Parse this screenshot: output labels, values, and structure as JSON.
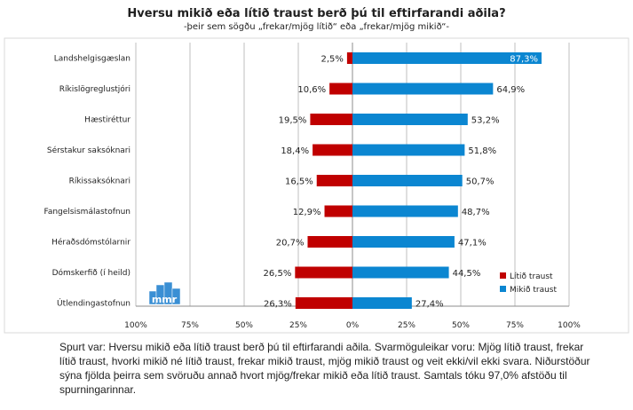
{
  "chart_data": {
    "type": "bar",
    "title": "Hversu mikið eða lítið traust berð þú til eftirfarandi aðila?",
    "subtitle": "-þeir sem sögðu „frekar/mjög lítið“ eða „frekar/mjög mikið“-",
    "categories": [
      "Landshelgisgæslan",
      "Ríkislögreglustjóri",
      "Hæstiréttur",
      "Sérstakur saksóknari",
      "Ríkissaksóknari",
      "Fangelsismálastofnun",
      "Héraðsdómstólarnir",
      "Dómskerfið (í heild)",
      "Útlendingastofnun"
    ],
    "series": [
      {
        "name": "Lítið traust",
        "color": "#c00000",
        "values": [
          2.5,
          10.6,
          19.5,
          18.4,
          16.5,
          12.9,
          20.7,
          26.5,
          26.3
        ],
        "labels": [
          "2,5%",
          "10,6%",
          "19,5%",
          "18,4%",
          "16,5%",
          "12,9%",
          "20,7%",
          "26,5%",
          "26,3%"
        ]
      },
      {
        "name": "Mikið traust",
        "color": "#0b86d1",
        "values": [
          87.3,
          64.9,
          53.2,
          51.8,
          50.7,
          48.7,
          47.1,
          44.5,
          27.4
        ],
        "labels": [
          "87,3%",
          "64,9%",
          "53,2%",
          "51,8%",
          "50,7%",
          "48,7%",
          "47,1%",
          "44,5%",
          "27,4%"
        ]
      }
    ],
    "xlim": [
      -100,
      100
    ],
    "xticks": [
      -100,
      -75,
      -50,
      -25,
      0,
      25,
      50,
      75,
      100
    ],
    "xtick_labels": [
      "100%",
      "75%",
      "50%",
      "25%",
      "0%",
      "25%",
      "50%",
      "75%",
      "100%"
    ],
    "grid": true,
    "legend_position": "bottom-right",
    "logo_text": "mmr"
  },
  "footnote": "Spurt var: Hversu mikið eða lítið traust berð þú til eftirfarandi aðila. Svarmöguleikar voru: Mjög lítið traust, frekar lítið traust, hvorki mikið né lítið traust, frekar mikið traust, mjög mikið traust og veit ekki/vil ekki svara. Niðurstöður sýna fjölda þeirra sem svöruðu annað hvort mjög/frekar mikið eða lítið traust. Samtals tóku 97,0% afstöðu til spurningarinnar."
}
